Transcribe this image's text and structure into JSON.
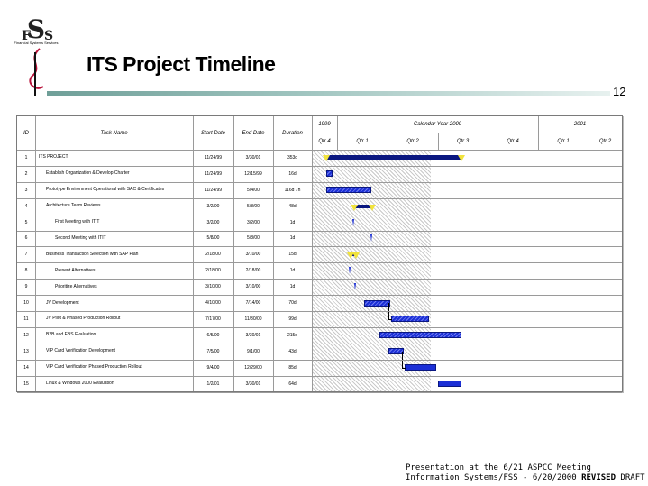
{
  "logo": {
    "text": "FSS",
    "subtitle": "Financial Systems Services"
  },
  "title": "ITS Project Timeline",
  "page_number": "12",
  "gantt": {
    "headers": {
      "id": "ID",
      "task_name": "Task Name",
      "start": "Start Date",
      "end": "End Date",
      "duration": "Duration"
    },
    "timescale": {
      "years": [
        "1999",
        "Calendar Year 2000",
        "2001"
      ],
      "quarters": [
        "Qtr 4",
        "Qtr 1",
        "Qtr 2",
        "Qtr 3",
        "Qtr 4",
        "Qtr 1",
        "Qtr 2"
      ]
    },
    "rows": [
      {
        "id": "1",
        "name": "ITS PROJECT",
        "start": "11/24/99",
        "end": "3/30/01",
        "duration": "353d"
      },
      {
        "id": "2",
        "name": "Establish Organization & Develop Charter",
        "start": "11/24/99",
        "end": "12/15/99",
        "duration": "16d"
      },
      {
        "id": "3",
        "name": "Prototype Environment Operational with SAC & Certificates",
        "start": "11/24/99",
        "end": "5/4/00",
        "duration": "116d 7h"
      },
      {
        "id": "4",
        "name": "Architecture Team Reviews",
        "start": "3/2/00",
        "end": "5/8/00",
        "duration": "48d"
      },
      {
        "id": "5",
        "name": "First Meeting with ITIT",
        "start": "3/2/00",
        "end": "3/2/00",
        "duration": "1d"
      },
      {
        "id": "6",
        "name": "Second Meeting with ITIT",
        "start": "5/8/00",
        "end": "5/8/00",
        "duration": "1d"
      },
      {
        "id": "7",
        "name": "Business Transaction Selection with SAP Plan",
        "start": "2/18/00",
        "end": "3/10/00",
        "duration": "15d"
      },
      {
        "id": "8",
        "name": "Present Alternatives",
        "start": "2/18/00",
        "end": "2/18/00",
        "duration": "1d"
      },
      {
        "id": "9",
        "name": "Prioritize Alternatives",
        "start": "3/10/00",
        "end": "3/10/00",
        "duration": "1d"
      },
      {
        "id": "10",
        "name": "JV Development",
        "start": "4/10/00",
        "end": "7/14/00",
        "duration": "70d"
      },
      {
        "id": "11",
        "name": "JV Pilot & Phased Production Rollout",
        "start": "7/17/00",
        "end": "11/30/00",
        "duration": "99d"
      },
      {
        "id": "12",
        "name": "B2B and EBS Evaluation",
        "start": "6/5/00",
        "end": "3/30/01",
        "duration": "215d"
      },
      {
        "id": "13",
        "name": "VIP Card Verification Development",
        "start": "7/5/00",
        "end": "9/1/00",
        "duration": "43d"
      },
      {
        "id": "14",
        "name": "VIP Card Verification Phased Production Rollout",
        "start": "9/4/00",
        "end": "12/29/00",
        "duration": "85d"
      },
      {
        "id": "15",
        "name": "Linux & Windows 2000 Evaluation",
        "start": "1/2/01",
        "end": "3/30/01",
        "duration": "64d"
      }
    ]
  },
  "footer": {
    "line1": "Presentation at the 6/21 ASPCC Meeting",
    "line2_prefix": "Information Systems/FSS -  6/20/2000  ",
    "revised": "REVISED",
    "draft": " DRAFT"
  },
  "colors": {
    "bar": "#1b2fd6",
    "milestone": "#f1e33d",
    "today_line": "#d01818",
    "rule": "#6f9f98"
  }
}
